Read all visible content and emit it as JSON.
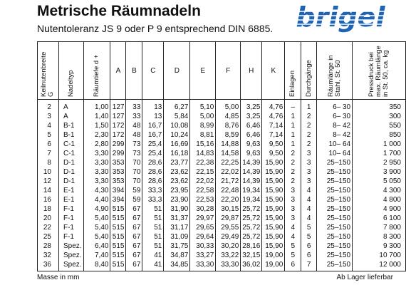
{
  "header": {
    "title": "Metrische Räumnadeln",
    "subtitle": "Nutentoleranz JS 9 oder P 9 entsprechend DIN 6885.",
    "logo": "brigel"
  },
  "table": {
    "columns": [
      "Keilnutenbreite\nG",
      "Nadeltyp",
      "Räumtiefe d +",
      "A",
      "B",
      "C",
      "D",
      "E",
      "F",
      "H",
      "K",
      "Einlagen",
      "Durchgänge",
      "Räumlänge in\nStahl, St. 50",
      "Pressdruck bei\nmax. Räumlänge\nin St. 50, ca. kg"
    ],
    "rows": [
      [
        "2",
        "A",
        "1,00",
        "127",
        "33",
        "13",
        "6,27",
        "5,10",
        "5,00",
        "3,25",
        "4,76",
        "–",
        "1",
        "6– 30",
        "350"
      ],
      [
        "3",
        "A",
        "1,40",
        "127",
        "33",
        "13",
        "5,84",
        "5,00",
        "4,85",
        "3,25",
        "4,76",
        "1",
        "2",
        "6– 30",
        "300"
      ],
      [
        "4",
        "B-1",
        "1,50",
        "172",
        "48",
        "16,7",
        "10,08",
        "8,99",
        "8,76",
        "6,46",
        "7,14",
        "1",
        "2",
        "8– 42",
        "550"
      ],
      [
        "5",
        "B-1",
        "2,30",
        "172",
        "48",
        "16,7",
        "10,24",
        "8,81",
        "8,59",
        "6,46",
        "7,14",
        "1",
        "2",
        "8– 42",
        "850"
      ],
      [
        "6",
        "C-1",
        "2,80",
        "299",
        "73",
        "25,4",
        "16,69",
        "15,16",
        "14,88",
        "9,63",
        "9,50",
        "1",
        "2",
        "10– 64",
        "1 000"
      ],
      [
        "7",
        "C-1",
        "3,30",
        "299",
        "73",
        "25,4",
        "16,18",
        "14,83",
        "14,58",
        "9,63",
        "9,50",
        "2",
        "3",
        "10– 64",
        "1 700"
      ],
      [
        "8",
        "D-1",
        "3,30",
        "353",
        "70",
        "28,6",
        "23,77",
        "22,38",
        "22,25",
        "14,39",
        "15,90",
        "2",
        "3",
        "25–150",
        "2 950"
      ],
      [
        "10",
        "D-1",
        "3,30",
        "353",
        "70",
        "28,6",
        "23,62",
        "22,15",
        "22,02",
        "14,39",
        "15,90",
        "2",
        "3",
        "25–150",
        "3 900"
      ],
      [
        "12",
        "D-1",
        "3,30",
        "353",
        "70",
        "28,6",
        "23,62",
        "22,02",
        "21,72",
        "14,39",
        "15,90",
        "2",
        "3",
        "25–150",
        "5 050"
      ],
      [
        "14",
        "E-1",
        "4,30",
        "394",
        "59",
        "33,3",
        "23,95",
        "22,58",
        "22,48",
        "19,34",
        "15,90",
        "3",
        "4",
        "25–150",
        "4 300"
      ],
      [
        "16",
        "E-1",
        "4,40",
        "394",
        "59",
        "33,3",
        "23,90",
        "22,53",
        "22,20",
        "19,34",
        "15,90",
        "3",
        "4",
        "25–150",
        "4 800"
      ],
      [
        "18",
        "F-1",
        "4,90",
        "515",
        "67",
        "51",
        "31,90",
        "30,28",
        "30,15",
        "25,72",
        "15,90",
        "3",
        "4",
        "25–150",
        "4 900"
      ],
      [
        "20",
        "F-1",
        "5,40",
        "515",
        "67",
        "51",
        "31,37",
        "29,97",
        "29,87",
        "25,72",
        "15,90",
        "3",
        "4",
        "25–150",
        "6 100"
      ],
      [
        "22",
        "F-1",
        "5,40",
        "515",
        "67",
        "51",
        "31,17",
        "29,65",
        "29,55",
        "25,72",
        "15,90",
        "4",
        "5",
        "25–150",
        "7 800"
      ],
      [
        "25",
        "F-1",
        "5,40",
        "515",
        "67",
        "51",
        "31,09",
        "29,64",
        "29,49",
        "25,72",
        "15,90",
        "4",
        "5",
        "25–150",
        "8 300"
      ],
      [
        "28",
        "Spez.",
        "6,40",
        "515",
        "67",
        "51",
        "31,75",
        "30,33",
        "30,20",
        "28,16",
        "15,90",
        "5",
        "6",
        "25–150",
        "9 300"
      ],
      [
        "32",
        "Spez.",
        "7,40",
        "515",
        "67",
        "41",
        "34,87",
        "33,27",
        "33,22",
        "32,15",
        "19,00",
        "5",
        "6",
        "25–150",
        "10 700"
      ],
      [
        "36",
        "Spez.",
        "8,40",
        "515",
        "67",
        "41",
        "34,85",
        "33,30",
        "33,30",
        "36,02",
        "19,00",
        "6",
        "7",
        "25–150",
        "12 000"
      ]
    ]
  },
  "footer": {
    "left": "Masse in mm",
    "right": "Ab Lager lieferbar"
  }
}
